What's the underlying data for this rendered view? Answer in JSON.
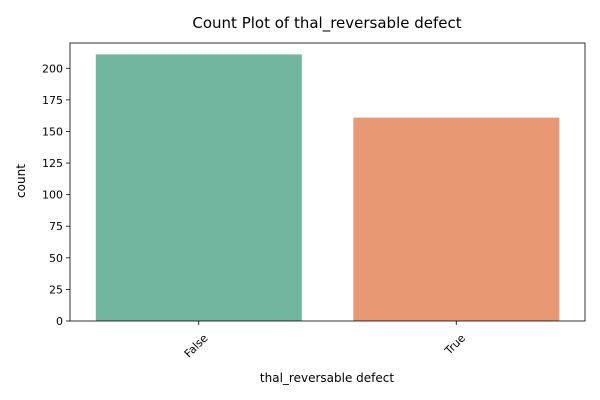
{
  "chart_data": {
    "type": "bar",
    "title": "Count Plot of thal_reversable defect",
    "xlabel": "thal_reversable defect",
    "ylabel": "count",
    "categories": [
      "False",
      "True"
    ],
    "values": [
      211,
      161
    ],
    "colors": [
      "#73b6a0",
      "#e99874"
    ],
    "ylim": [
      0,
      220
    ],
    "yticks": [
      0,
      25,
      50,
      75,
      100,
      125,
      150,
      175,
      200
    ],
    "grid": false,
    "legend": "none",
    "xtick_rotation": 45
  }
}
